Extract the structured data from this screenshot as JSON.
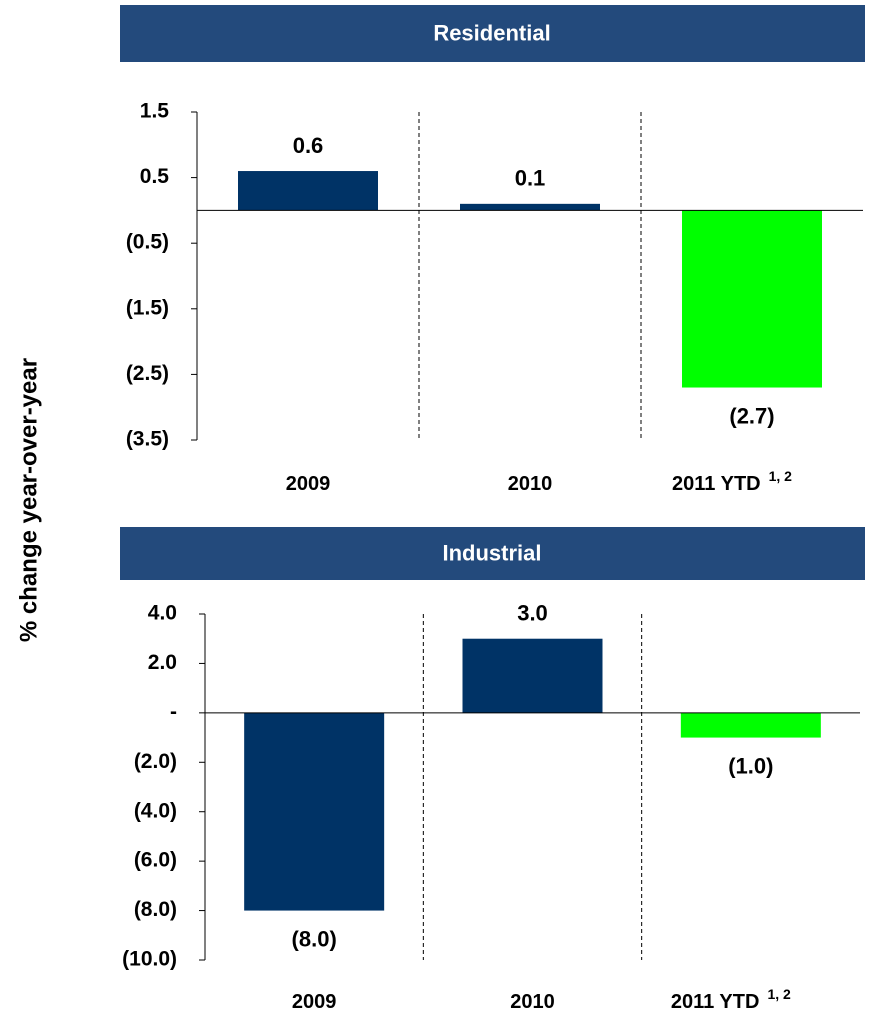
{
  "y_label": "% change year-over-year",
  "chart_data": [
    {
      "type": "bar",
      "title": "Residential",
      "categories": [
        "2009",
        "2010",
        "2011 YTD"
      ],
      "category_footnote": "1, 2",
      "values": [
        0.6,
        0.1,
        -2.7
      ],
      "value_labels": [
        "0.6",
        "0.1",
        "(2.7)"
      ],
      "colors": [
        "#003366",
        "#003366",
        "#00ff00"
      ],
      "ylim": [
        -3.5,
        1.5
      ],
      "yticks": [
        1.5,
        0.5,
        {
          "value": -0.5,
          "label": "(0.5)"
        },
        {
          "value": -1.5,
          "label": "(1.5)"
        },
        {
          "value": -2.5,
          "label": "(2.5)"
        },
        {
          "value": -3.5,
          "label": "(3.5)"
        }
      ]
    },
    {
      "type": "bar",
      "title": "Industrial",
      "categories": [
        "2009",
        "2010",
        "2011 YTD"
      ],
      "category_footnote": "1, 2",
      "values": [
        -8.0,
        3.0,
        -1.0
      ],
      "value_labels": [
        "(8.0)",
        "3.0",
        "(1.0)"
      ],
      "colors": [
        "#003366",
        "#003366",
        "#00ff00"
      ],
      "ylim": [
        -10,
        4
      ],
      "yticks": [
        {
          "value": 4,
          "label": "4.0"
        },
        {
          "value": 2,
          "label": "2.0"
        },
        {
          "value": 0,
          "label": "-"
        },
        {
          "value": -2,
          "label": "(2.0)"
        },
        {
          "value": -4,
          "label": "(4.0)"
        },
        {
          "value": -6,
          "label": "(6.0)"
        },
        {
          "value": -8,
          "label": "(8.0)"
        },
        {
          "value": -10,
          "label": "(10.0)"
        }
      ]
    }
  ]
}
